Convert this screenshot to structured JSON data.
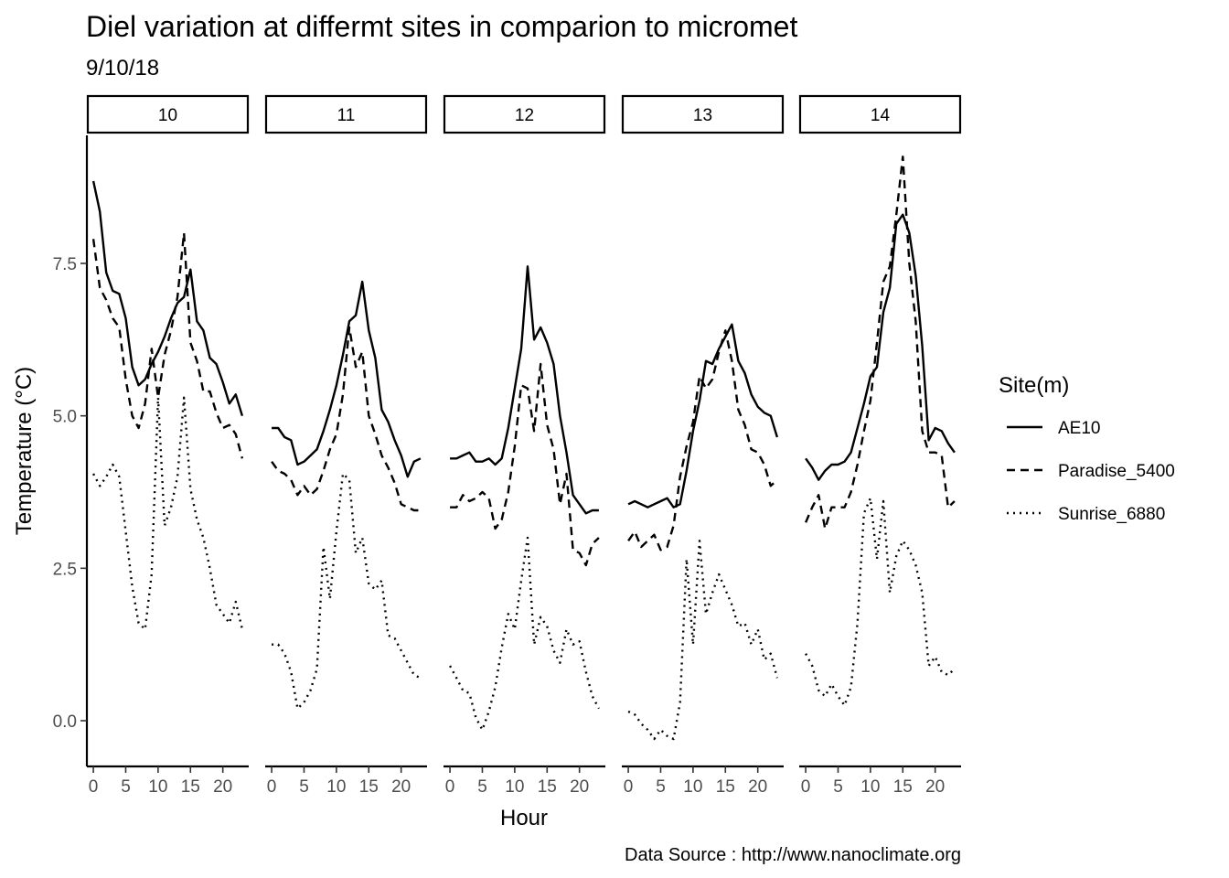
{
  "chart_data": {
    "type": "line",
    "title": "Diel variation at differmt sites in comparion to micromet",
    "subtitle": "9/10/18",
    "xlabel": "Hour",
    "ylabel": "Temperature (°C)",
    "caption": "Data Source : http://www.nanoclimate.org",
    "facet_labels": [
      "10",
      "11",
      "12",
      "13",
      "14"
    ],
    "x_ticks": [
      "0",
      "5",
      "10",
      "15",
      "20"
    ],
    "y_ticks": [
      "0.0",
      "2.5",
      "5.0",
      "7.5"
    ],
    "xlim": [
      -1,
      24
    ],
    "ylim": [
      -0.75,
      9.6
    ],
    "grid": false,
    "legend": {
      "title": "Site(m)",
      "position": "right",
      "entries": [
        {
          "name": "AE10",
          "linetype": "solid"
        },
        {
          "name": "Paradise_5400",
          "linetype": "dashed"
        },
        {
          "name": "Sunrise_6880",
          "linetype": "dotted"
        }
      ]
    },
    "hours": [
      0,
      1,
      2,
      3,
      4,
      5,
      6,
      7,
      8,
      9,
      10,
      11,
      12,
      13,
      14,
      15,
      16,
      17,
      18,
      19,
      20,
      21,
      22,
      23
    ],
    "facets": [
      {
        "label": "10",
        "series": [
          {
            "name": "AE10",
            "values": [
              8.85,
              8.35,
              7.35,
              7.05,
              7.0,
              6.6,
              5.8,
              5.5,
              5.6,
              5.85,
              6.05,
              6.3,
              6.6,
              6.85,
              6.95,
              7.4,
              6.55,
              6.4,
              5.95,
              5.85,
              5.55,
              5.2,
              5.35,
              5.0
            ]
          },
          {
            "name": "Paradise_5400",
            "values": [
              7.9,
              7.1,
              6.9,
              6.6,
              6.45,
              5.6,
              5.0,
              4.8,
              5.2,
              6.1,
              5.3,
              6.0,
              6.4,
              6.95,
              8.0,
              6.2,
              5.9,
              5.4,
              5.4,
              5.05,
              4.8,
              4.85,
              4.7,
              4.3
            ]
          },
          {
            "name": "Sunrise_6880",
            "values": [
              4.05,
              3.85,
              4.0,
              4.2,
              4.0,
              3.1,
              2.2,
              1.6,
              1.5,
              2.4,
              5.3,
              3.2,
              3.5,
              4.0,
              5.3,
              3.8,
              3.3,
              3.0,
              2.5,
              1.9,
              1.75,
              1.6,
              1.95,
              1.5
            ]
          }
        ]
      },
      {
        "label": "11",
        "series": [
          {
            "name": "AE10",
            "values": [
              4.8,
              4.8,
              4.65,
              4.6,
              4.2,
              4.25,
              4.35,
              4.45,
              4.75,
              5.1,
              5.5,
              6.0,
              6.55,
              6.65,
              7.2,
              6.4,
              5.95,
              5.1,
              4.9,
              4.6,
              4.35,
              4.0,
              4.25,
              4.3
            ]
          },
          {
            "name": "Paradise_5400",
            "values": [
              4.25,
              4.1,
              4.05,
              3.95,
              3.7,
              3.85,
              3.7,
              3.8,
              4.1,
              4.45,
              4.7,
              5.35,
              6.45,
              5.8,
              6.05,
              5.0,
              4.7,
              4.35,
              4.15,
              3.9,
              3.55,
              3.5,
              3.45,
              3.45
            ]
          },
          {
            "name": "Sunrise_6880",
            "values": [
              1.25,
              1.25,
              1.1,
              0.8,
              0.2,
              0.3,
              0.5,
              0.85,
              2.85,
              2.0,
              3.1,
              4.05,
              3.95,
              2.75,
              3.0,
              2.25,
              2.15,
              2.3,
              1.4,
              1.35,
              1.15,
              0.95,
              0.75,
              0.7
            ]
          }
        ]
      },
      {
        "label": "12",
        "series": [
          {
            "name": "AE10",
            "values": [
              4.3,
              4.3,
              4.35,
              4.4,
              4.25,
              4.25,
              4.3,
              4.2,
              4.3,
              4.8,
              5.45,
              6.1,
              7.45,
              6.25,
              6.45,
              6.2,
              5.85,
              5.0,
              4.4,
              3.7,
              3.55,
              3.4,
              3.45,
              3.45
            ]
          },
          {
            "name": "Paradise_5400",
            "values": [
              3.5,
              3.5,
              3.7,
              3.6,
              3.65,
              3.75,
              3.65,
              3.15,
              3.3,
              3.75,
              4.5,
              5.5,
              5.45,
              4.75,
              5.85,
              4.85,
              4.45,
              3.55,
              4.05,
              2.8,
              2.75,
              2.55,
              2.9,
              3.0
            ]
          },
          {
            "name": "Sunrise_6880",
            "values": [
              0.9,
              0.7,
              0.5,
              0.45,
              0.05,
              -0.15,
              0.15,
              0.55,
              1.2,
              1.75,
              1.5,
              2.3,
              3.0,
              1.25,
              1.7,
              1.55,
              1.15,
              0.95,
              1.5,
              1.25,
              1.3,
              0.8,
              0.4,
              0.2
            ]
          }
        ]
      },
      {
        "label": "13",
        "series": [
          {
            "name": "AE10",
            "values": [
              3.55,
              3.6,
              3.55,
              3.5,
              3.55,
              3.6,
              3.65,
              3.5,
              3.55,
              4.1,
              4.75,
              5.25,
              5.9,
              5.85,
              6.1,
              6.3,
              6.5,
              5.9,
              5.7,
              5.35,
              5.15,
              5.05,
              5.0,
              4.65
            ]
          },
          {
            "name": "Paradise_5400",
            "values": [
              2.95,
              3.1,
              2.85,
              2.95,
              3.05,
              2.8,
              2.85,
              3.2,
              4.0,
              4.5,
              4.9,
              5.65,
              5.45,
              5.6,
              6.05,
              6.4,
              5.9,
              5.1,
              4.85,
              4.45,
              4.4,
              4.2,
              3.85,
              3.95
            ]
          },
          {
            "name": "Sunrise_6880",
            "values": [
              0.15,
              0.1,
              -0.05,
              -0.15,
              -0.3,
              -0.15,
              -0.25,
              -0.3,
              0.3,
              2.65,
              1.25,
              2.95,
              1.75,
              2.1,
              2.4,
              2.15,
              1.9,
              1.55,
              1.6,
              1.25,
              1.5,
              1.0,
              1.1,
              0.7
            ]
          }
        ]
      },
      {
        "label": "14",
        "series": [
          {
            "name": "AE10",
            "values": [
              4.3,
              4.15,
              3.95,
              4.1,
              4.2,
              4.2,
              4.25,
              4.4,
              4.8,
              5.2,
              5.65,
              5.8,
              6.7,
              7.1,
              8.15,
              8.3,
              8.0,
              7.3,
              6.15,
              4.6,
              4.8,
              4.75,
              4.55,
              4.4
            ]
          },
          {
            "name": "Paradise_5400",
            "values": [
              3.25,
              3.5,
              3.7,
              3.15,
              3.5,
              3.5,
              3.5,
              3.75,
              4.2,
              4.75,
              5.25,
              6.2,
              7.2,
              7.45,
              8.3,
              9.25,
              7.5,
              6.55,
              4.75,
              4.4,
              4.4,
              4.35,
              3.5,
              3.6
            ]
          },
          {
            "name": "Sunrise_6880",
            "values": [
              1.1,
              0.9,
              0.5,
              0.4,
              0.6,
              0.4,
              0.25,
              0.55,
              1.6,
              3.4,
              3.65,
              2.65,
              3.6,
              2.1,
              2.7,
              2.95,
              2.8,
              2.55,
              2.1,
              0.9,
              1.05,
              0.8,
              0.75,
              0.85
            ]
          }
        ]
      }
    ]
  }
}
